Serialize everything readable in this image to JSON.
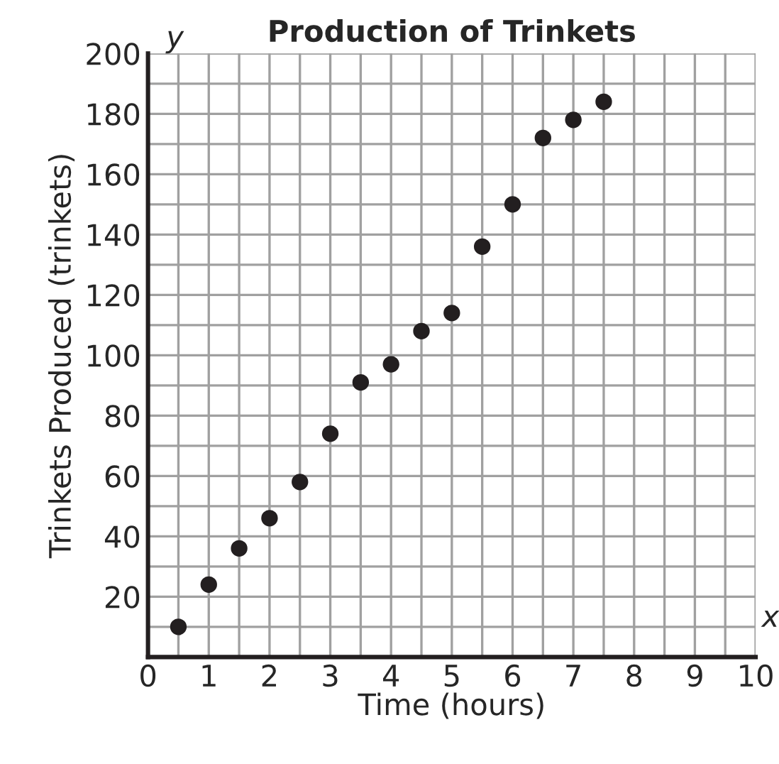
{
  "chart_data": {
    "type": "scatter",
    "title": "Production of Trinkets",
    "xlabel": "Time (hours)",
    "ylabel": "Trinkets Produced (trinkets)",
    "annotations": [
      "y",
      "x"
    ],
    "x": [
      0.5,
      1,
      1.5,
      2,
      2.5,
      3,
      3.5,
      4,
      4.5,
      5,
      5.5,
      6,
      6.5,
      7,
      7.5
    ],
    "series": [
      {
        "color": "#231f20",
        "values": [
          10,
          24,
          36,
          46,
          58,
          74,
          91,
          97,
          108,
          114,
          136,
          150,
          172,
          178,
          184
        ]
      }
    ],
    "marker": "circle",
    "grid": true,
    "xlim": [
      0,
      10
    ],
    "ylim": [
      0,
      200
    ],
    "xticks": [
      0,
      {
        "value": 0.5,
        "label": null
      },
      1,
      {
        "value": 1.5,
        "label": null
      },
      2,
      {
        "value": 2.5,
        "label": null
      },
      3,
      {
        "value": 3.5,
        "label": null
      },
      4,
      {
        "value": 4.5,
        "label": null
      },
      5,
      {
        "value": 5.5,
        "label": null
      },
      6,
      {
        "value": 6.5,
        "label": null
      },
      7,
      {
        "value": 7.5,
        "label": null
      },
      8,
      {
        "value": 8.5,
        "label": null
      },
      9,
      {
        "value": 9.5,
        "label": null
      },
      10
    ],
    "yticks": [
      {
        "value": 10,
        "label": null
      },
      20,
      {
        "value": 30,
        "label": null
      },
      40,
      {
        "value": 50,
        "label": null
      },
      60,
      {
        "value": 70,
        "label": null
      },
      80,
      {
        "value": 90,
        "label": null
      },
      100,
      {
        "value": 110,
        "label": null
      },
      120,
      {
        "value": 130,
        "label": null
      },
      140,
      {
        "value": 150,
        "label": null
      },
      160,
      {
        "value": 170,
        "label": null
      },
      180,
      {
        "value": 190,
        "label": null
      },
      200
    ]
  }
}
